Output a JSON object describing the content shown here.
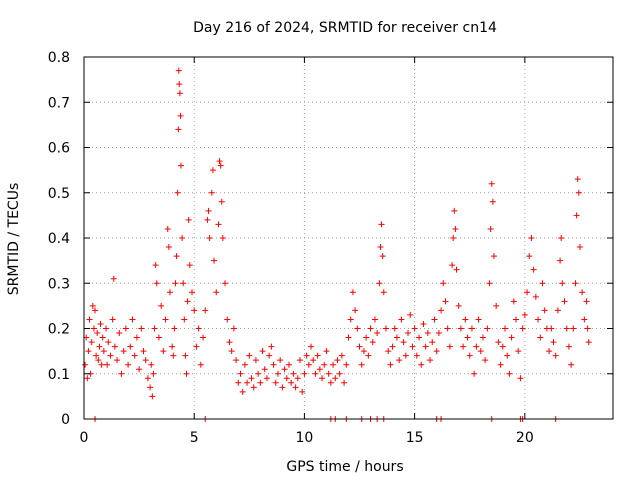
{
  "chart_data": {
    "type": "scatter",
    "title": "Day 216 of 2024, SRMTID for receiver cn14",
    "xlabel": "GPS time / hours",
    "ylabel": "SRMTID / TECUs",
    "xlim": [
      0,
      24
    ],
    "ylim": [
      0,
      0.8
    ],
    "grid": true,
    "marker": "+",
    "marker_color": "#ff0000",
    "xticks": [
      {
        "value": 0,
        "label": "0"
      },
      {
        "value": 5,
        "label": "5"
      },
      {
        "value": 10,
        "label": "10"
      },
      {
        "value": 15,
        "label": "15"
      },
      {
        "value": 20,
        "label": "20"
      }
    ],
    "yticks": [
      {
        "value": 0,
        "label": "0"
      },
      {
        "value": 0.1,
        "label": "0.1"
      },
      {
        "value": 0.2,
        "label": "0.2"
      },
      {
        "value": 0.3,
        "label": "0.3"
      },
      {
        "value": 0.4,
        "label": "0.4"
      },
      {
        "value": 0.5,
        "label": "0.5"
      },
      {
        "value": 0.6,
        "label": "0.6"
      },
      {
        "value": 0.7,
        "label": "0.7"
      },
      {
        "value": 0.8,
        "label": "0.8"
      }
    ],
    "series": [
      {
        "name": "SRMTID",
        "points": [
          [
            0.05,
            0.12
          ],
          [
            0.1,
            0.18
          ],
          [
            0.15,
            0.09
          ],
          [
            0.2,
            0.15
          ],
          [
            0.25,
            0.22
          ],
          [
            0.3,
            0.1
          ],
          [
            0.35,
            0.17
          ],
          [
            0.4,
            0.25
          ],
          [
            0.45,
            0.2
          ],
          [
            0.5,
            0.24
          ],
          [
            0.55,
            0.14
          ],
          [
            0.6,
            0.19
          ],
          [
            0.65,
            0.13
          ],
          [
            0.7,
            0.16
          ],
          [
            0.75,
            0.21
          ],
          [
            0.8,
            0.12
          ],
          [
            0.85,
            0.18
          ],
          [
            0.9,
            0.15
          ],
          [
            1.0,
            0.2
          ],
          [
            1.05,
            0.12
          ],
          [
            1.1,
            0.17
          ],
          [
            1.2,
            0.14
          ],
          [
            1.3,
            0.22
          ],
          [
            1.35,
            0.31
          ],
          [
            1.4,
            0.16
          ],
          [
            1.5,
            0.13
          ],
          [
            1.6,
            0.19
          ],
          [
            1.7,
            0.1
          ],
          [
            1.8,
            0.15
          ],
          [
            1.9,
            0.2
          ],
          [
            2.0,
            0.12
          ],
          [
            2.1,
            0.16
          ],
          [
            2.2,
            0.22
          ],
          [
            2.3,
            0.14
          ],
          [
            2.4,
            0.18
          ],
          [
            2.5,
            0.11
          ],
          [
            2.6,
            0.2
          ],
          [
            2.7,
            0.15
          ],
          [
            2.8,
            0.13
          ],
          [
            2.9,
            0.09
          ],
          [
            3.0,
            0.07
          ],
          [
            3.05,
            0.12
          ],
          [
            3.1,
            0.05
          ],
          [
            3.15,
            0.1
          ],
          [
            3.2,
            0.2
          ],
          [
            3.25,
            0.34
          ],
          [
            3.3,
            0.3
          ],
          [
            3.4,
            0.18
          ],
          [
            3.5,
            0.25
          ],
          [
            3.6,
            0.15
          ],
          [
            3.7,
            0.22
          ],
          [
            3.8,
            0.42
          ],
          [
            3.85,
            0.38
          ],
          [
            3.9,
            0.28
          ],
          [
            4.0,
            0.16
          ],
          [
            4.05,
            0.14
          ],
          [
            4.1,
            0.2
          ],
          [
            4.15,
            0.3
          ],
          [
            4.2,
            0.36
          ],
          [
            4.25,
            0.5
          ],
          [
            4.28,
            0.64
          ],
          [
            4.3,
            0.77
          ],
          [
            4.32,
            0.74
          ],
          [
            4.35,
            0.72
          ],
          [
            4.38,
            0.67
          ],
          [
            4.4,
            0.56
          ],
          [
            4.45,
            0.4
          ],
          [
            4.5,
            0.3
          ],
          [
            4.55,
            0.22
          ],
          [
            4.6,
            0.14
          ],
          [
            4.65,
            0.1
          ],
          [
            4.7,
            0.26
          ],
          [
            4.75,
            0.44
          ],
          [
            4.8,
            0.34
          ],
          [
            4.9,
            0.28
          ],
          [
            5.0,
            0.24
          ],
          [
            5.1,
            0.16
          ],
          [
            5.2,
            0.2
          ],
          [
            5.3,
            0.12
          ],
          [
            5.4,
            0.18
          ],
          [
            5.5,
            0.24
          ],
          [
            5.6,
            0.44
          ],
          [
            5.65,
            0.46
          ],
          [
            5.7,
            0.4
          ],
          [
            5.8,
            0.5
          ],
          [
            5.85,
            0.55
          ],
          [
            5.9,
            0.35
          ],
          [
            6.0,
            0.28
          ],
          [
            6.1,
            0.43
          ],
          [
            6.15,
            0.57
          ],
          [
            6.2,
            0.56
          ],
          [
            6.25,
            0.48
          ],
          [
            6.3,
            0.4
          ],
          [
            6.4,
            0.3
          ],
          [
            6.5,
            0.22
          ],
          [
            6.6,
            0.17
          ],
          [
            6.7,
            0.15
          ],
          [
            6.8,
            0.2
          ],
          [
            6.9,
            0.13
          ],
          [
            7.0,
            0.08
          ],
          [
            7.1,
            0.1
          ],
          [
            7.2,
            0.06
          ],
          [
            7.3,
            0.12
          ],
          [
            7.4,
            0.08
          ],
          [
            7.5,
            0.14
          ],
          [
            7.6,
            0.09
          ],
          [
            7.7,
            0.07
          ],
          [
            7.8,
            0.13
          ],
          [
            7.9,
            0.1
          ],
          [
            8.0,
            0.08
          ],
          [
            8.1,
            0.15
          ],
          [
            8.2,
            0.11
          ],
          [
            8.3,
            0.09
          ],
          [
            8.4,
            0.14
          ],
          [
            8.5,
            0.16
          ],
          [
            8.6,
            0.12
          ],
          [
            8.7,
            0.08
          ],
          [
            8.8,
            0.1
          ],
          [
            8.9,
            0.13
          ],
          [
            9.0,
            0.07
          ],
          [
            9.1,
            0.11
          ],
          [
            9.2,
            0.09
          ],
          [
            9.3,
            0.12
          ],
          [
            9.4,
            0.08
          ],
          [
            9.5,
            0.1
          ],
          [
            9.6,
            0.07
          ],
          [
            9.7,
            0.09
          ],
          [
            9.8,
            0.13
          ],
          [
            9.9,
            0.06
          ],
          [
            10.0,
            0.1
          ],
          [
            10.1,
            0.14
          ],
          [
            10.2,
            0.12
          ],
          [
            10.3,
            0.16
          ],
          [
            10.4,
            0.13
          ],
          [
            10.5,
            0.1
          ],
          [
            10.6,
            0.14
          ],
          [
            10.7,
            0.11
          ],
          [
            10.8,
            0.09
          ],
          [
            10.9,
            0.12
          ],
          [
            11.0,
            0.15
          ],
          [
            11.1,
            0.1
          ],
          [
            11.2,
            0.08
          ],
          [
            11.3,
            0.12
          ],
          [
            11.4,
            0.09
          ],
          [
            11.5,
            0.13
          ],
          [
            11.6,
            0.1
          ],
          [
            11.7,
            0.14
          ],
          [
            11.8,
            0.08
          ],
          [
            11.9,
            0.12
          ],
          [
            12.0,
            0.18
          ],
          [
            12.1,
            0.22
          ],
          [
            12.2,
            0.28
          ],
          [
            12.3,
            0.24
          ],
          [
            12.4,
            0.2
          ],
          [
            12.5,
            0.16
          ],
          [
            12.6,
            0.12
          ],
          [
            12.7,
            0.15
          ],
          [
            12.8,
            0.18
          ],
          [
            12.9,
            0.14
          ],
          [
            13.0,
            0.2
          ],
          [
            13.1,
            0.17
          ],
          [
            13.2,
            0.22
          ],
          [
            13.3,
            0.19
          ],
          [
            13.4,
            0.3
          ],
          [
            13.45,
            0.38
          ],
          [
            13.5,
            0.43
          ],
          [
            13.55,
            0.36
          ],
          [
            13.6,
            0.28
          ],
          [
            13.7,
            0.2
          ],
          [
            13.8,
            0.15
          ],
          [
            13.9,
            0.12
          ],
          [
            14.0,
            0.16
          ],
          [
            14.1,
            0.2
          ],
          [
            14.2,
            0.18
          ],
          [
            14.3,
            0.13
          ],
          [
            14.4,
            0.22
          ],
          [
            14.5,
            0.17
          ],
          [
            14.6,
            0.14
          ],
          [
            14.7,
            0.19
          ],
          [
            14.8,
            0.23
          ],
          [
            14.9,
            0.16
          ],
          [
            15.0,
            0.2
          ],
          [
            15.1,
            0.14
          ],
          [
            15.2,
            0.18
          ],
          [
            15.3,
            0.12
          ],
          [
            15.4,
            0.21
          ],
          [
            15.5,
            0.16
          ],
          [
            15.6,
            0.19
          ],
          [
            15.7,
            0.13
          ],
          [
            15.8,
            0.17
          ],
          [
            15.9,
            0.22
          ],
          [
            16.0,
            0.15
          ],
          [
            16.1,
            0.19
          ],
          [
            16.2,
            0.24
          ],
          [
            16.3,
            0.3
          ],
          [
            16.4,
            0.26
          ],
          [
            16.5,
            0.2
          ],
          [
            16.6,
            0.16
          ],
          [
            16.7,
            0.34
          ],
          [
            16.75,
            0.4
          ],
          [
            16.8,
            0.46
          ],
          [
            16.85,
            0.42
          ],
          [
            16.9,
            0.33
          ],
          [
            17.0,
            0.25
          ],
          [
            17.1,
            0.2
          ],
          [
            17.2,
            0.16
          ],
          [
            17.3,
            0.22
          ],
          [
            17.4,
            0.18
          ],
          [
            17.5,
            0.14
          ],
          [
            17.6,
            0.2
          ],
          [
            17.7,
            0.1
          ],
          [
            17.8,
            0.16
          ],
          [
            17.9,
            0.22
          ],
          [
            18.0,
            0.15
          ],
          [
            18.1,
            0.18
          ],
          [
            18.2,
            0.13
          ],
          [
            18.3,
            0.2
          ],
          [
            18.4,
            0.3
          ],
          [
            18.45,
            0.42
          ],
          [
            18.5,
            0.52
          ],
          [
            18.55,
            0.48
          ],
          [
            18.6,
            0.36
          ],
          [
            18.7,
            0.25
          ],
          [
            18.8,
            0.17
          ],
          [
            18.9,
            0.12
          ],
          [
            19.0,
            0.16
          ],
          [
            19.1,
            0.2
          ],
          [
            19.2,
            0.14
          ],
          [
            19.3,
            0.1
          ],
          [
            19.4,
            0.18
          ],
          [
            19.5,
            0.26
          ],
          [
            19.6,
            0.22
          ],
          [
            19.7,
            0.15
          ],
          [
            19.8,
            0.09
          ],
          [
            19.9,
            0.2
          ],
          [
            20.0,
            0.23
          ],
          [
            20.1,
            0.28
          ],
          [
            20.2,
            0.36
          ],
          [
            20.3,
            0.4
          ],
          [
            20.4,
            0.33
          ],
          [
            20.5,
            0.27
          ],
          [
            20.6,
            0.22
          ],
          [
            20.7,
            0.18
          ],
          [
            20.8,
            0.3
          ],
          [
            20.9,
            0.24
          ],
          [
            21.0,
            0.2
          ],
          [
            21.1,
            0.15
          ],
          [
            21.2,
            0.2
          ],
          [
            21.3,
            0.17
          ],
          [
            21.4,
            0.14
          ],
          [
            21.5,
            0.24
          ],
          [
            21.6,
            0.35
          ],
          [
            21.65,
            0.4
          ],
          [
            21.7,
            0.3
          ],
          [
            21.8,
            0.26
          ],
          [
            21.9,
            0.2
          ],
          [
            22.0,
            0.16
          ],
          [
            22.1,
            0.12
          ],
          [
            22.2,
            0.2
          ],
          [
            22.3,
            0.3
          ],
          [
            22.35,
            0.45
          ],
          [
            22.4,
            0.53
          ],
          [
            22.45,
            0.5
          ],
          [
            22.5,
            0.38
          ],
          [
            22.6,
            0.28
          ],
          [
            22.7,
            0.22
          ],
          [
            22.8,
            0.26
          ],
          [
            22.85,
            0.2
          ],
          [
            22.9,
            0.17
          ]
        ]
      }
    ],
    "zero_markers": [
      0.5,
      5.5,
      11.2,
      11.4,
      11.9,
      12.6,
      13.0,
      13.3,
      13.6,
      16.0,
      16.2,
      18.5,
      19.8,
      19.9,
      21.4
    ]
  }
}
